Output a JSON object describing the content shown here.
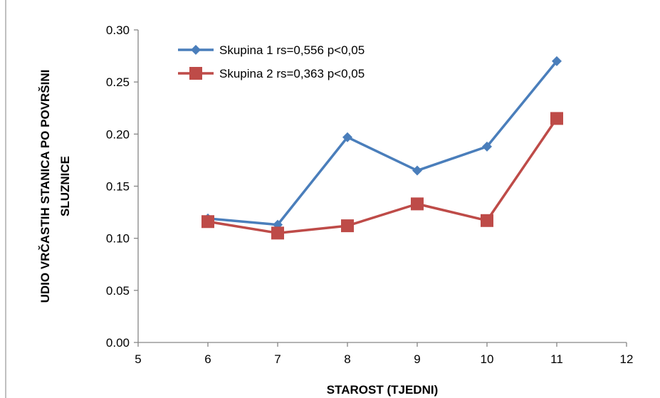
{
  "chart_data": {
    "type": "line",
    "title": "",
    "xlabel": "STAROST (TJEDNI)",
    "ylabel_line1": "UDIO  VRČASTIH STANICA PO POVRŠINI",
    "ylabel_line2": "SLUZNICE",
    "xlim": [
      5,
      12
    ],
    "ylim": [
      0,
      0.3
    ],
    "x_ticks": [
      "5",
      "6",
      "7",
      "8",
      "9",
      "10",
      "11",
      "12"
    ],
    "y_ticks": [
      "0.00",
      "0.05",
      "0.10",
      "0.15",
      "0.20",
      "0.25",
      "0.30"
    ],
    "grid": false,
    "legend_position": "top-left",
    "series": [
      {
        "name": "Skupina 1 rs=0,556 p<0,05",
        "color": "#4a7ebb",
        "marker": "diamond",
        "x": [
          6,
          7,
          8,
          9,
          10,
          11
        ],
        "y": [
          0.119,
          0.113,
          0.197,
          0.165,
          0.188,
          0.27
        ]
      },
      {
        "name": "Skupina 2 rs=0,363 p<0,05",
        "color": "#be4b48",
        "marker": "square",
        "x": [
          6,
          7,
          8,
          9,
          10,
          11
        ],
        "y": [
          0.116,
          0.105,
          0.112,
          0.133,
          0.117,
          0.215
        ]
      }
    ]
  }
}
